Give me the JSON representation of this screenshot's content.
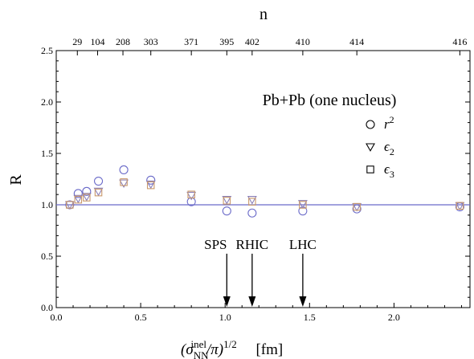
{
  "chart_data": {
    "type": "scatter",
    "title": "Pb+Pb (one nucleus)",
    "xlabel": "(σ_NN^inel/π)^1/2    [fm]",
    "ylabel": "R",
    "top_axis_label": "n",
    "xlim": [
      0.0,
      2.45
    ],
    "ylim": [
      0.0,
      2.5
    ],
    "x_ticks": [
      0.0,
      0.5,
      1.0,
      1.5,
      2.0
    ],
    "x_tick_labels": [
      "0.0",
      "0.5",
      "1.0",
      "1.5",
      "2.0"
    ],
    "y_ticks": [
      0.0,
      0.5,
      1.0,
      1.5,
      2.0,
      2.5
    ],
    "y_tick_labels": [
      "0.0",
      "0.5",
      "1.0",
      "1.5",
      "2.0",
      "2.5"
    ],
    "top_ticks": [
      {
        "x": 0.125,
        "label": "29"
      },
      {
        "x": 0.245,
        "label": "104"
      },
      {
        "x": 0.395,
        "label": "208"
      },
      {
        "x": 0.56,
        "label": "303"
      },
      {
        "x": 0.8,
        "label": "371"
      },
      {
        "x": 1.01,
        "label": "395"
      },
      {
        "x": 1.16,
        "label": "402"
      },
      {
        "x": 1.46,
        "label": "410"
      },
      {
        "x": 1.78,
        "label": "414"
      },
      {
        "x": 2.39,
        "label": "416"
      }
    ],
    "reference_line": {
      "y": 1.0,
      "color": "#6b6bc9"
    },
    "series": [
      {
        "name": "r²",
        "marker": "circle",
        "color": "#6b6bc9",
        "x": [
          0.08,
          0.13,
          0.18,
          0.25,
          0.4,
          0.56,
          0.8,
          1.01,
          1.16,
          1.46,
          1.78,
          2.39
        ],
        "y": [
          1.0,
          1.11,
          1.13,
          1.23,
          1.34,
          1.24,
          1.03,
          0.94,
          0.92,
          0.94,
          0.96,
          0.98
        ]
      },
      {
        "name": "ε₂",
        "marker": "triangle-down",
        "color": "#8a7fb8",
        "x": [
          0.08,
          0.13,
          0.18,
          0.25,
          0.4,
          0.56,
          0.8,
          1.01,
          1.16,
          1.46,
          1.78,
          2.39
        ],
        "y": [
          1.0,
          1.06,
          1.08,
          1.13,
          1.21,
          1.2,
          1.09,
          1.05,
          1.05,
          1.01,
          0.98,
          0.99
        ]
      },
      {
        "name": "ε₃",
        "marker": "square",
        "color": "#c9986a",
        "x": [
          0.08,
          0.13,
          0.18,
          0.25,
          0.4,
          0.56,
          0.8,
          1.01,
          1.16,
          1.46,
          1.78,
          2.39
        ],
        "y": [
          1.0,
          1.05,
          1.07,
          1.12,
          1.22,
          1.19,
          1.1,
          1.04,
          1.03,
          1.0,
          0.98,
          0.99
        ]
      }
    ],
    "legend_placement": "upper-right",
    "annotations": [
      {
        "label": "SPS",
        "x": 1.01
      },
      {
        "label": "RHIC",
        "x": 1.16
      },
      {
        "label": "LHC",
        "x": 1.46
      }
    ],
    "annotation_arrow_from_y": 0.54,
    "annotation_arrow_to_y": 0.0
  }
}
